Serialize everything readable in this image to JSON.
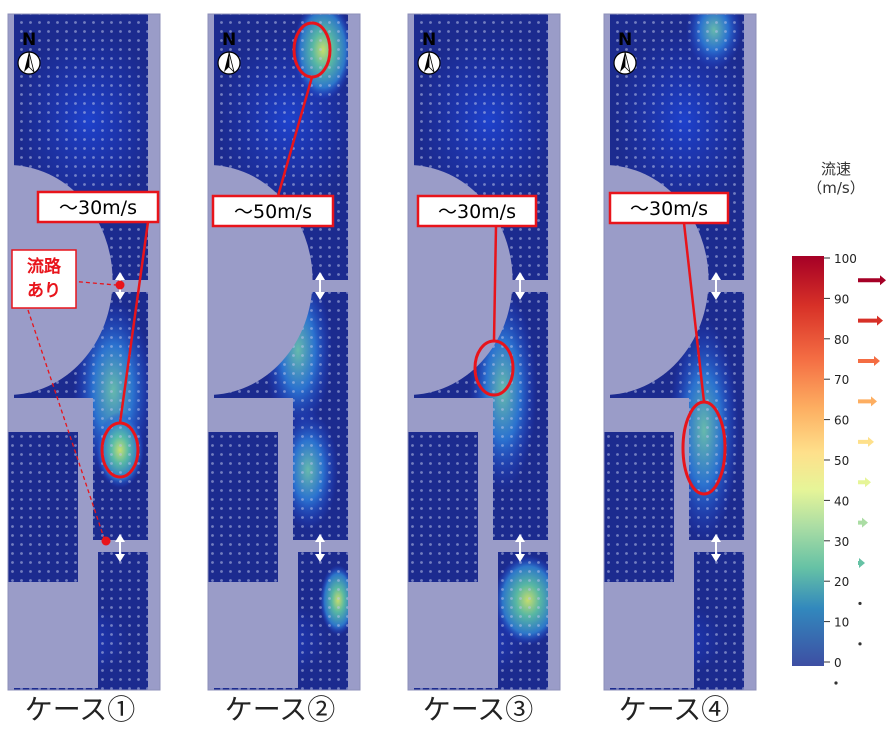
{
  "north_label": "N",
  "legend": {
    "title": "流速",
    "unit": "（m/s）",
    "ticks": [
      "100",
      "90",
      "80",
      "70",
      "60",
      "50",
      "40",
      "30",
      "20",
      "10",
      "0"
    ],
    "colors": [
      "#a50026",
      "#d73027",
      "#f46d43",
      "#fdae61",
      "#fee08b",
      "#e6f598",
      "#abdda4",
      "#66c2a5",
      "#3288bd",
      "#2c5aa0",
      "#313695"
    ]
  },
  "flow_note": "流路\nあり",
  "panels": [
    {
      "id": "case1",
      "label": "ケース①",
      "callout": "～30m/s"
    },
    {
      "id": "case2",
      "label": "ケース②",
      "callout": "～50m/s"
    },
    {
      "id": "case3",
      "label": "ケース③",
      "callout": "～30m/s"
    },
    {
      "id": "case4",
      "label": "ケース④",
      "callout": "～30m/s"
    }
  ]
}
